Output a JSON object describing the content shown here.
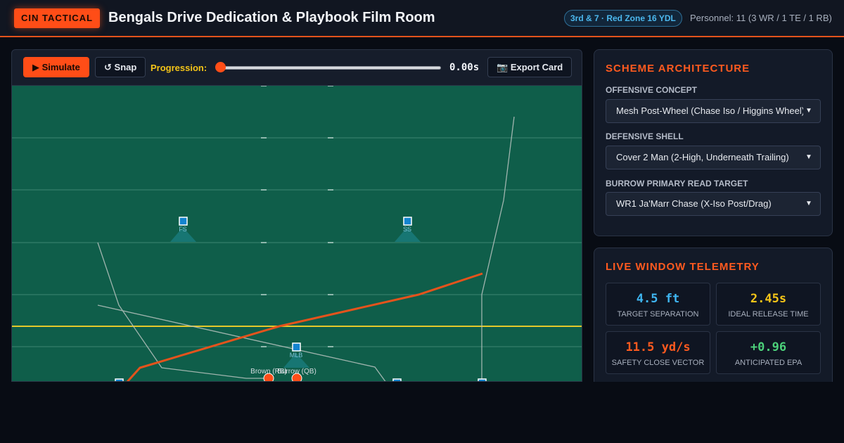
{
  "header": {
    "brand": "CIN TACTICAL",
    "title": "Bengals Drive Dedication & Playbook Film Room",
    "situation": "3rd & 7 · Red Zone 16 YDL",
    "personnel": "Personnel: 11 (3 WR / 1 TE / 1 RB)"
  },
  "toolbar": {
    "simulate_label": "Simulate",
    "snap_label": "Snap",
    "progression_label": "Progression:",
    "progression_value": 0,
    "time_readout": "0.00s",
    "export_label": "Export Card"
  },
  "field": {
    "defenders": [
      {
        "label": "FS"
      },
      {
        "label": "SS"
      },
      {
        "label": "MLB"
      }
    ],
    "offense_labels": [
      "Brown (RB)",
      "Burrow (QB)"
    ],
    "colors": {
      "turf": "#0f5e4a",
      "first_down_line": "#e5c82a",
      "primary_route": "#e4531c",
      "secondary_route": "#b9c3bf",
      "defender": "#1484cf"
    }
  },
  "scheme": {
    "title": "SCHEME ARCHITECTURE",
    "offensive_label": "OFFENSIVE CONCEPT",
    "offensive_value": "Mesh Post-Wheel (Chase Iso / Higgins Wheel)",
    "defensive_label": "DEFENSIVE SHELL",
    "defensive_value": "Cover 2 Man (2-High, Underneath Trailing)",
    "read_label": "BURROW PRIMARY READ TARGET",
    "read_value": "WR1 Ja'Marr Chase (X-Iso Post/Drag)"
  },
  "telemetry": {
    "title": "LIVE WINDOW TELEMETRY",
    "stats": [
      {
        "value": "4.5 ft",
        "label": "TARGET SEPARATION",
        "color": "#3fb6f2"
      },
      {
        "value": "2.45s",
        "label": "IDEAL RELEASE TIME",
        "color": "#f5c518"
      },
      {
        "value": "11.5 yd/s",
        "label": "SAFETY CLOSE VECTOR",
        "color": "#ff5a1f"
      },
      {
        "value": "+0.96",
        "label": "ANTICIPATED EPA",
        "color": "#4cd07a"
      }
    ]
  },
  "icons": {
    "simulate": "play-icon",
    "snap": "reset-icon",
    "export": "camera-icon"
  }
}
